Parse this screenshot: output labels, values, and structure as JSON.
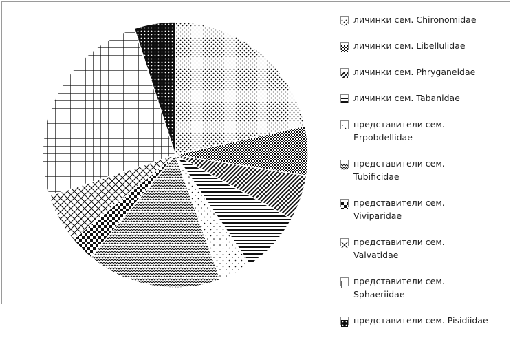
{
  "chart_data": {
    "type": "pie",
    "title": "",
    "slices": [
      {
        "label": "личинки сем. Chironomidae",
        "value": 21.5,
        "pattern": "dots"
      },
      {
        "label": "личинки сем. Libellulidae",
        "value": 6.0,
        "pattern": "checker"
      },
      {
        "label": "личинки сем.  Phryganeidae",
        "value": 5.5,
        "pattern": "diag-dark"
      },
      {
        "label": "личинки сем. Tabanidae",
        "value": 7.5,
        "pattern": "hlines"
      },
      {
        "label": "представители сем. Erpobdellidae",
        "value": 4.0,
        "pattern": "sparse-dots"
      },
      {
        "label": "представители сем. Tubificidae",
        "value": 16.5,
        "pattern": "waves"
      },
      {
        "label": "представители сем. Viviparidae",
        "value": 3.0,
        "pattern": "bigcheck"
      },
      {
        "label": "представители сем. Valvatidae",
        "value": 6.0,
        "pattern": "diag-grid"
      },
      {
        "label": "представители сем. Sphaeriidae",
        "value": 25.0,
        "pattern": "grid"
      },
      {
        "label": "представители сем. Pisidiidae",
        "value": 5.0,
        "pattern": "dark-dots"
      }
    ],
    "legend_position": "right"
  },
  "legend": [
    "личинки сем. Chironomidae",
    "личинки сем. Libellulidae",
    "личинки сем.  Phryganeidae",
    "личинки сем. Tabanidae",
    "представители сем.\nErpobdellidae",
    "представители сем.\nTubificidae",
    "представители сем.\nViviparidae",
    "представители сем.\nValvatidae",
    "представители сем.\nSphaeriidae",
    "представители сем. Pisidiidae"
  ]
}
